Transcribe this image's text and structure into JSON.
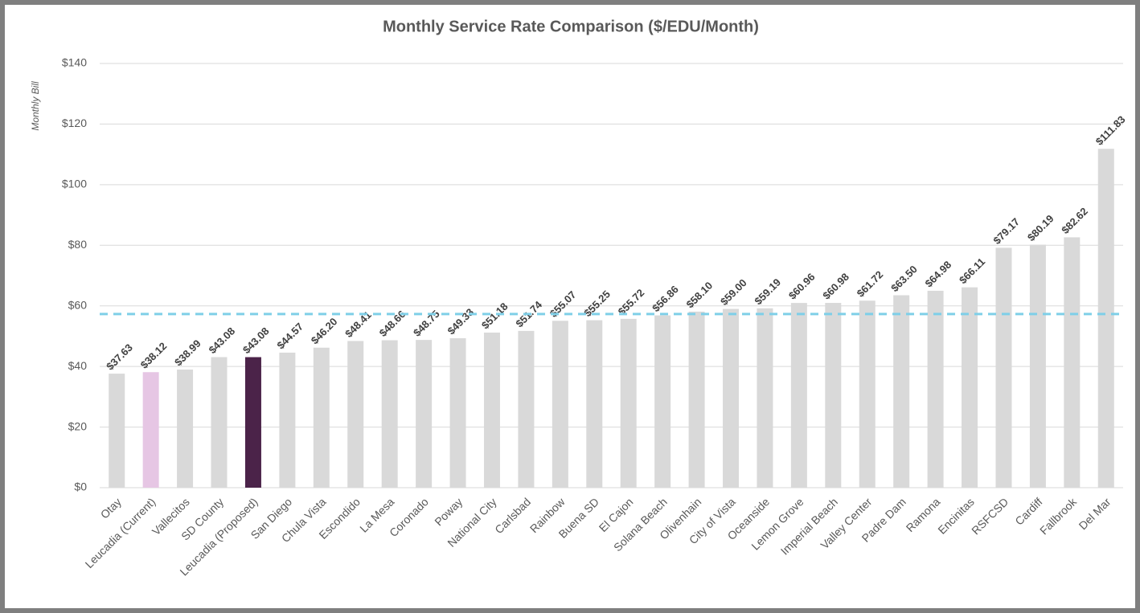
{
  "chart_data": {
    "type": "bar",
    "title": "Monthly Service Rate Comparison ($/EDU/Month)",
    "y_label": "Monthly Bill",
    "categories": [
      "Otay",
      "Leucadia (Current)",
      "Vallecitos",
      "SD County",
      "Leucadia (Proposed)",
      "San Diego",
      "Chula Vista",
      "Escondido",
      "La Mesa",
      "Coronado",
      "Poway",
      "National City",
      "Carlsbad",
      "Rainbow",
      "Buena SD",
      "El Cajon",
      "Solana Beach",
      "Olivenhain",
      "City of Vista",
      "Oceanside",
      "Lemon Grove",
      "Imperial Beach",
      "Valley Center",
      "Padre Dam",
      "Ramona",
      "Encinitas",
      "RSFCSD",
      "Cardiff",
      "Fallbrook",
      "Del Mar"
    ],
    "values": [
      37.63,
      38.12,
      38.99,
      43.08,
      43.08,
      44.57,
      46.2,
      48.41,
      48.66,
      48.75,
      49.33,
      51.18,
      51.74,
      55.07,
      55.25,
      55.72,
      56.86,
      58.1,
      59.0,
      59.19,
      60.96,
      60.98,
      61.72,
      63.5,
      64.98,
      66.11,
      79.17,
      80.19,
      82.62,
      111.83
    ],
    "value_labels": [
      "$37.63",
      "$38.12",
      "$38.99",
      "$43.08",
      "$43.08",
      "$44.57",
      "$46.20",
      "$48.41",
      "$48.66",
      "$48.75",
      "$49.33",
      "$51.18",
      "$51.74",
      "$55.07",
      "$55.25",
      "$55.72",
      "$56.86",
      "$58.10",
      "$59.00",
      "$59.19",
      "$60.96",
      "$60.98",
      "$61.72",
      "$63.50",
      "$64.98",
      "$66.11",
      "$79.17",
      "$80.19",
      "$82.62",
      "$111.83"
    ],
    "colors": [
      "#d9d9d9",
      "#e6c6e4",
      "#d9d9d9",
      "#d9d9d9",
      "#4b2349",
      "#d9d9d9",
      "#d9d9d9",
      "#d9d9d9",
      "#d9d9d9",
      "#d9d9d9",
      "#d9d9d9",
      "#d9d9d9",
      "#d9d9d9",
      "#d9d9d9",
      "#d9d9d9",
      "#d9d9d9",
      "#d9d9d9",
      "#d9d9d9",
      "#d9d9d9",
      "#d9d9d9",
      "#d9d9d9",
      "#d9d9d9",
      "#d9d9d9",
      "#d9d9d9",
      "#d9d9d9",
      "#d9d9d9",
      "#d9d9d9",
      "#d9d9d9",
      "#d9d9d9",
      "#d9d9d9"
    ],
    "ylim": [
      0,
      140
    ],
    "yticks": [
      {
        "value": 0,
        "label": "$0"
      },
      {
        "value": 20,
        "label": "$20"
      },
      {
        "value": 40,
        "label": "$40"
      },
      {
        "value": 60,
        "label": "$60"
      },
      {
        "value": 80,
        "label": "$80"
      },
      {
        "value": 100,
        "label": "$100"
      },
      {
        "value": 120,
        "label": "$120"
      },
      {
        "value": 140,
        "label": "$140"
      }
    ],
    "grid": true,
    "average_line": {
      "value": 57.3,
      "color": "#7fcfe8"
    }
  }
}
